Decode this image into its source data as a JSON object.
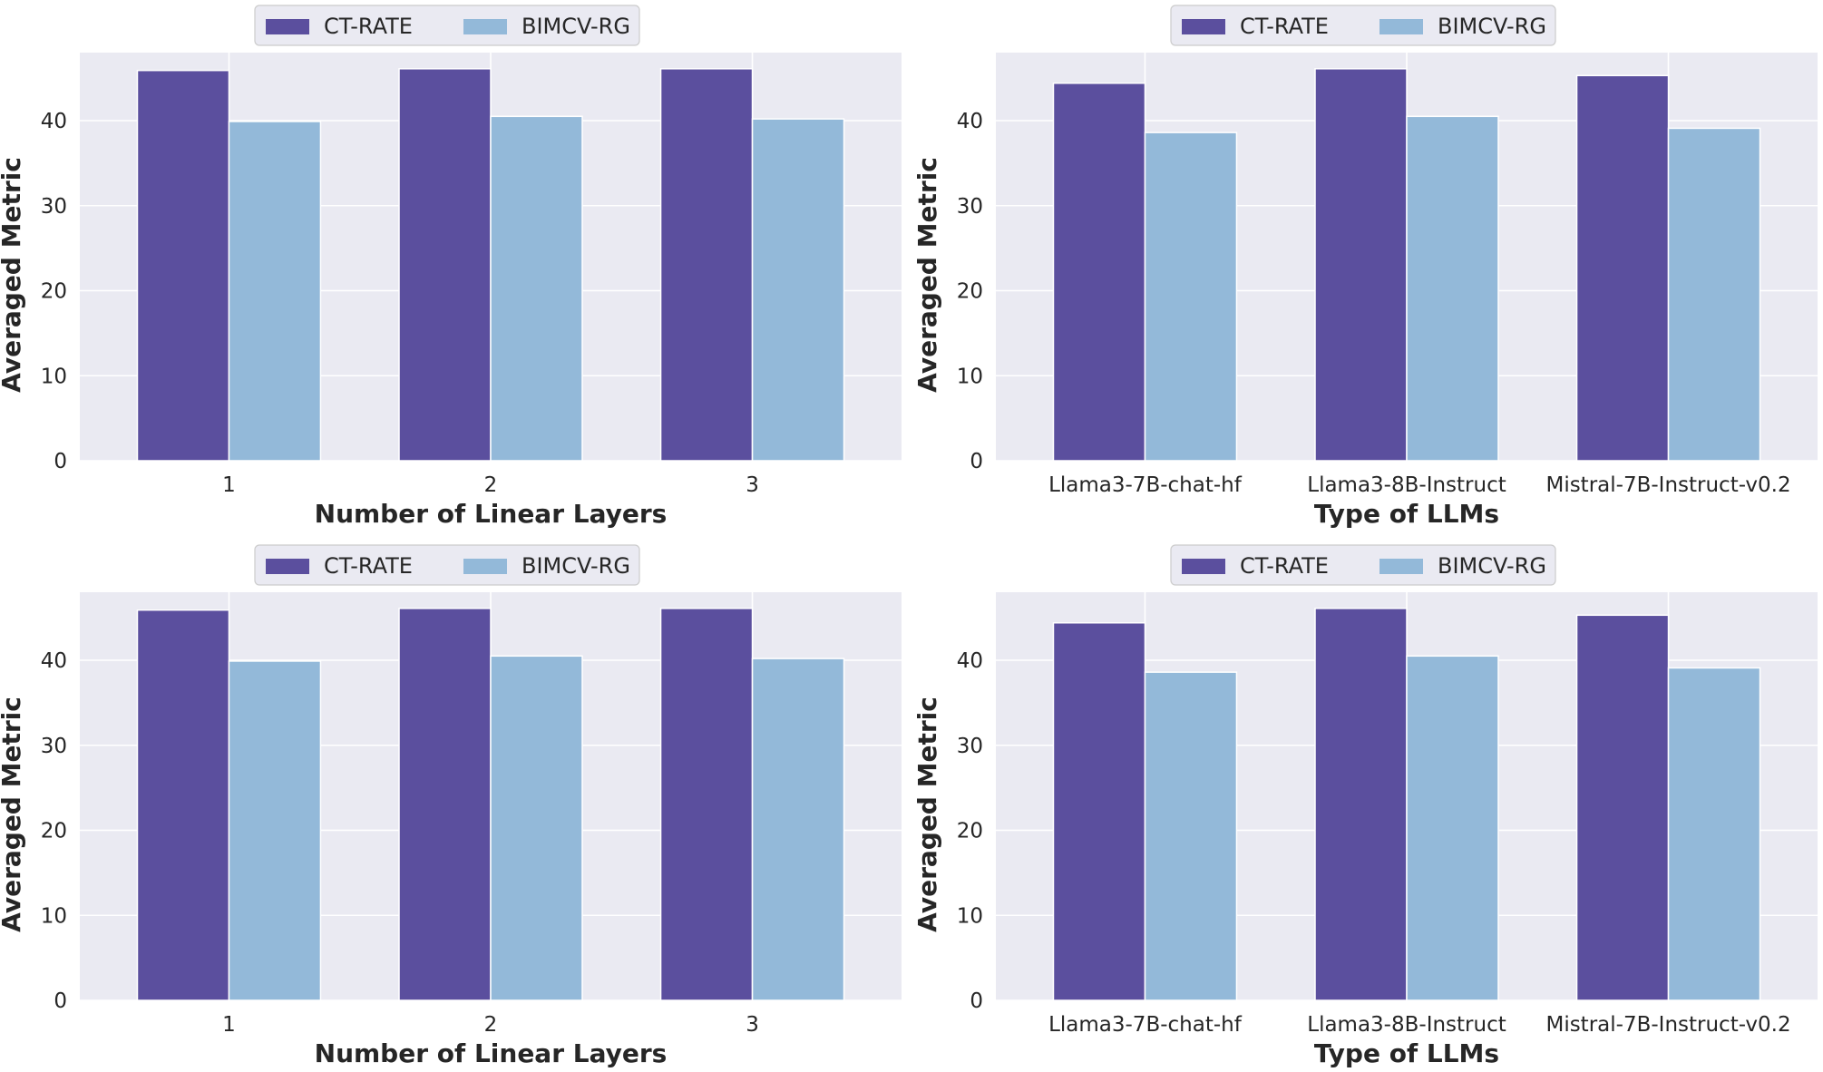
{
  "colors": {
    "ct_rate": "#5b4f9e",
    "bimcv_rg": "#93b9d9",
    "plot_bg": "#eaeaf2",
    "grid": "#ffffff"
  },
  "chart_data": [
    {
      "type": "bar",
      "panel": "top-left",
      "categories": [
        "1",
        "2",
        "3"
      ],
      "series": [
        {
          "name": "CT-RATE",
          "values": [
            45.9,
            46.1,
            46.1
          ]
        },
        {
          "name": "BIMCV-RG",
          "values": [
            39.9,
            40.5,
            40.2
          ]
        }
      ],
      "xlabel": "Number of Linear Layers",
      "ylabel": "Averaged Metric",
      "ylim": [
        0,
        48
      ],
      "yticks": [
        0,
        10,
        20,
        30,
        40
      ],
      "legend": "top-center"
    },
    {
      "type": "bar",
      "panel": "top-right",
      "categories": [
        "Llama3-7B-chat-hf",
        "Llama3-8B-Instruct",
        "Mistral-7B-Instruct-v0.2"
      ],
      "series": [
        {
          "name": "CT-RATE",
          "values": [
            44.4,
            46.1,
            45.3
          ]
        },
        {
          "name": "BIMCV-RG",
          "values": [
            38.6,
            40.5,
            39.1
          ]
        }
      ],
      "xlabel": "Type of LLMs",
      "ylabel": "Averaged Metric",
      "ylim": [
        0,
        48
      ],
      "yticks": [
        0,
        10,
        20,
        30,
        40
      ],
      "legend": "top-center"
    },
    {
      "type": "bar",
      "panel": "bottom-left",
      "categories": [
        "1",
        "2",
        "3"
      ],
      "series": [
        {
          "name": "CT-RATE",
          "values": [
            45.9,
            46.1,
            46.1
          ]
        },
        {
          "name": "BIMCV-RG",
          "values": [
            39.9,
            40.5,
            40.2
          ]
        }
      ],
      "xlabel": "Number of Linear Layers",
      "ylabel": "Averaged Metric",
      "ylim": [
        0,
        48
      ],
      "yticks": [
        0,
        10,
        20,
        30,
        40
      ],
      "legend": "top-center"
    },
    {
      "type": "bar",
      "panel": "bottom-right",
      "categories": [
        "Llama3-7B-chat-hf",
        "Llama3-8B-Instruct",
        "Mistral-7B-Instruct-v0.2"
      ],
      "series": [
        {
          "name": "CT-RATE",
          "values": [
            44.4,
            46.1,
            45.3
          ]
        },
        {
          "name": "BIMCV-RG",
          "values": [
            38.6,
            40.5,
            39.1
          ]
        }
      ],
      "xlabel": "Type of LLMs",
      "ylabel": "Averaged Metric",
      "ylim": [
        0,
        48
      ],
      "yticks": [
        0,
        10,
        20,
        30,
        40
      ],
      "legend": "top-center"
    }
  ]
}
